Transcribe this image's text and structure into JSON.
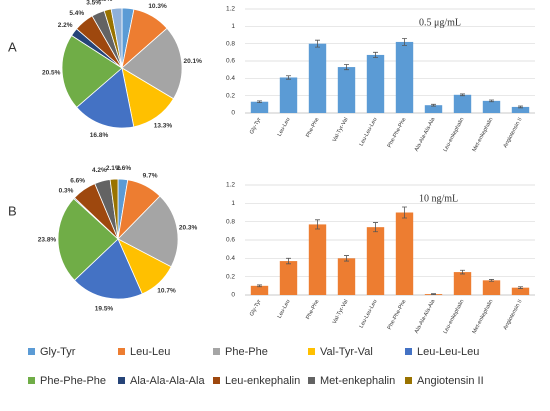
{
  "panels": [
    "A",
    "B"
  ],
  "chart_data": [
    {
      "type": "pie",
      "categories": [
        "Gly-Tyr",
        "Leu-Leu",
        "Phe-Phe",
        "Val-Tyr-Val",
        "Leu-Leu-Leu",
        "Phe-Phe-Phe",
        "Ala-Ala-Ala-Ala",
        "Leu-enkephalin",
        "Met-enkephalin",
        "Angiotensin II",
        null
      ],
      "values": [
        3.2,
        10.3,
        20.1,
        13.3,
        16.8,
        20.5,
        2.2,
        5.4,
        3.5,
        1.9,
        2.9
      ],
      "value_labels": [
        "3.2%",
        "10.3%",
        "20.1%",
        "13.3%",
        "16.8%",
        "20.5%",
        "2.2%",
        "5.4%",
        "3.5%",
        "1.9%",
        "2.9%"
      ],
      "colors": [
        "#5b9bd5",
        "#ed7d31",
        "#a5a5a5",
        "#ffc000",
        "#4472c4",
        "#70ad47",
        "#264478",
        "#9e480e",
        "#636363",
        "#997300",
        "#8fb0d8"
      ]
    },
    {
      "type": "bar",
      "annotation": "0.5 μg/mL",
      "categories": [
        "Gly-Tyr",
        "Leu-Leu",
        "Phe-Phe",
        "Val-Tyr-Val",
        "Leu-Leu-Leu",
        "Phe-Phe-Phe",
        "Ala-Ala-Ala-Ala",
        "Leu-enkephalin",
        "Met-enkephalin",
        "Angiotensin II"
      ],
      "values": [
        0.13,
        0.41,
        0.8,
        0.53,
        0.67,
        0.82,
        0.09,
        0.21,
        0.14,
        0.07
      ],
      "errors": [
        0.01,
        0.02,
        0.04,
        0.03,
        0.03,
        0.04,
        0.01,
        0.01,
        0.01,
        0.01
      ],
      "color": "#5b9bd5",
      "ylim": [
        0,
        1.2
      ],
      "yticks": [
        0,
        0.2,
        0.4,
        0.6,
        0.8,
        1,
        1.2
      ],
      "grid": true
    },
    {
      "type": "pie",
      "categories": [
        "Gly-Tyr",
        "Leu-Leu",
        "Phe-Phe",
        "Val-Tyr-Val",
        "Leu-Leu-Leu",
        "Phe-Phe-Phe",
        "Ala-Ala-Ala-Ala",
        "Leu-enkephalin",
        "Met-enkephalin",
        "Angiotensin II"
      ],
      "values": [
        2.6,
        9.7,
        20.3,
        10.7,
        19.5,
        23.8,
        0.3,
        6.6,
        4.2,
        2.1
      ],
      "value_labels": [
        "2.6%",
        "9.7%",
        "20.3%",
        "10.7%",
        "19.5%",
        "23.8%",
        "0.3%",
        "6.6%",
        "4.2%",
        "2.1%"
      ],
      "colors": [
        "#5b9bd5",
        "#ed7d31",
        "#a5a5a5",
        "#ffc000",
        "#4472c4",
        "#70ad47",
        "#264478",
        "#9e480e",
        "#636363",
        "#997300"
      ]
    },
    {
      "type": "bar",
      "annotation": "10 ng/mL",
      "categories": [
        "Gly-Tyr",
        "Leu-Leu",
        "Phe-Phe",
        "Val-Tyr-Val",
        "Leu-Leu-Leu",
        "Phe-Phe-Phe",
        "Ala-Ala-Ala-Ala",
        "Leu-enkephalin",
        "Met-enkephalin",
        "Angiotensin II"
      ],
      "values": [
        0.1,
        0.37,
        0.77,
        0.4,
        0.74,
        0.9,
        0.01,
        0.25,
        0.16,
        0.08
      ],
      "errors": [
        0.01,
        0.03,
        0.05,
        0.03,
        0.05,
        0.06,
        0.005,
        0.02,
        0.01,
        0.01
      ],
      "color": "#ed7d31",
      "ylim": [
        0,
        1.2
      ],
      "yticks": [
        0,
        0.2,
        0.4,
        0.6,
        0.8,
        1,
        1.2
      ],
      "grid": true
    }
  ]
}
